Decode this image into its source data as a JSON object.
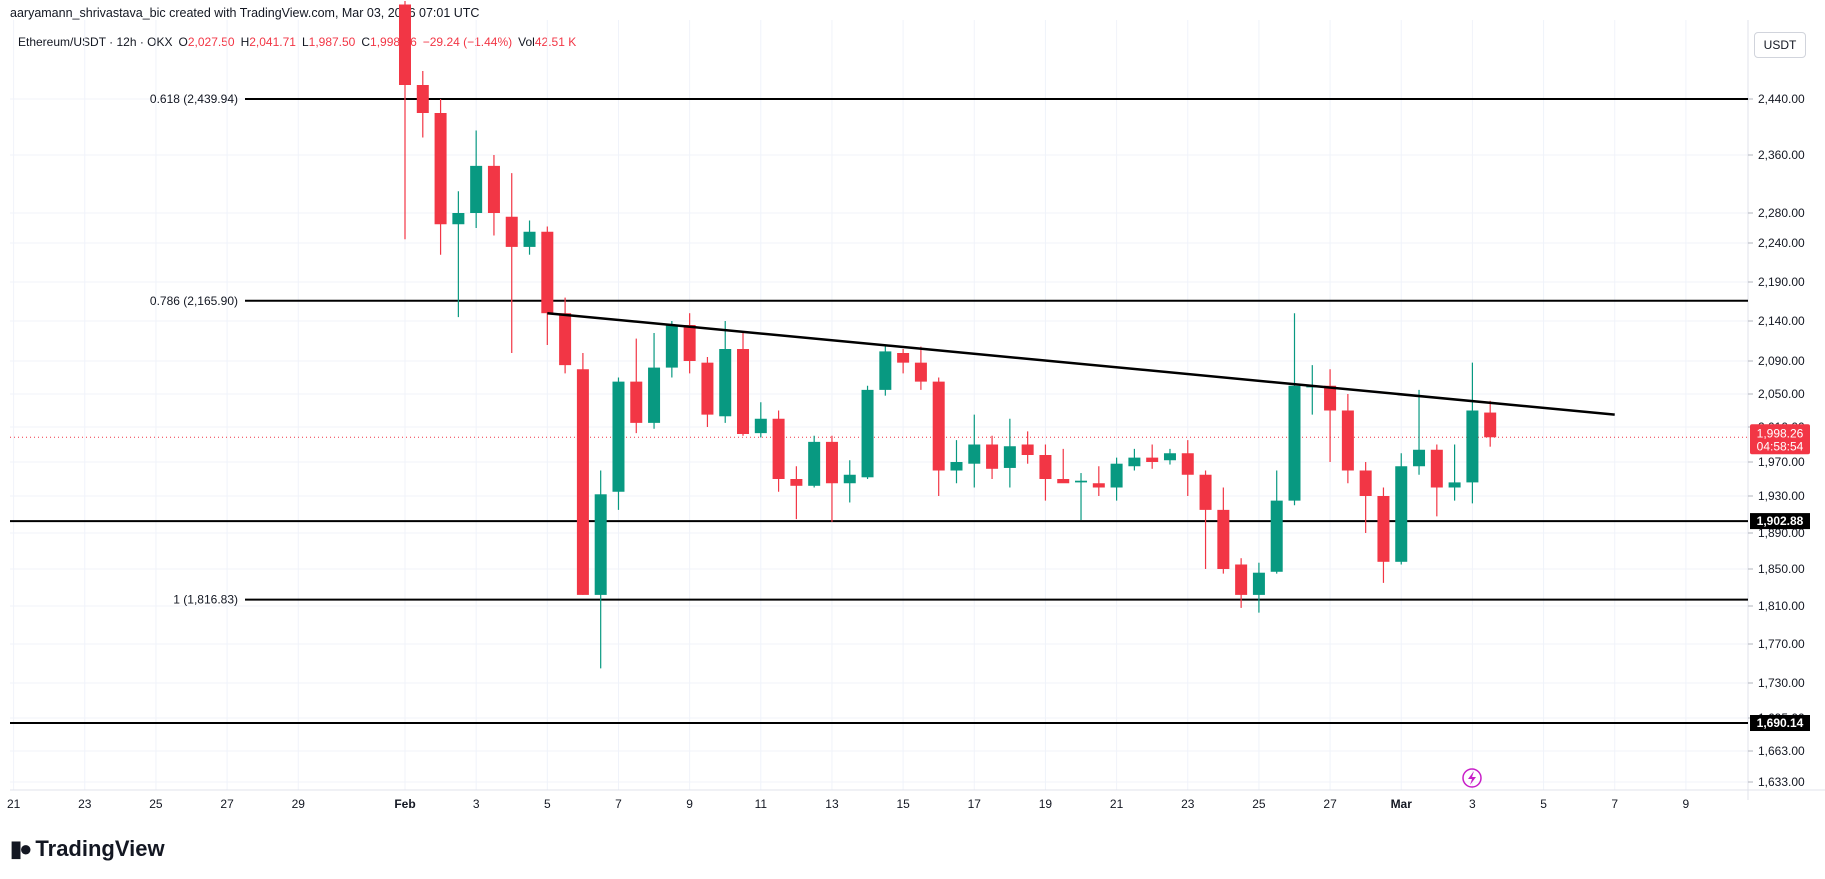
{
  "header": {
    "author_line": "aaryamann_shrivastava_bic created with TradingView.com, Mar 03, 2026 07:01 UTC"
  },
  "legend": {
    "symbol": "Ethereum/USDT · 12h · OKX",
    "open_label": "O",
    "open_value": "2,027.50",
    "high_label": "H",
    "high_value": "2,041.71",
    "low_label": "L",
    "low_value": "1,987.50",
    "close_label": "C",
    "close_value": "1,998.26",
    "change": "−29.24 (−1.44%)",
    "vol_label": "Vol",
    "vol_value": "42.51 K"
  },
  "currency_button": "USDT",
  "brand": {
    "name": "TradingView",
    "logo_icon": "tradingview-logo-icon"
  },
  "colors": {
    "up": "#089981",
    "down": "#f23645",
    "line": "#000000",
    "grid": "#f0f3fa"
  },
  "chart_data": {
    "type": "candlestick",
    "y_axis_ticks": [
      "2,440.00",
      "2,360.00",
      "2,280.00",
      "2,240.00",
      "2,190.00",
      "2,140.00",
      "2,090.00",
      "2,050.00",
      "2,010.00",
      "1,970.00",
      "1,930.00",
      "1,890.00",
      "1,850.00",
      "1,810.00",
      "1,770.00",
      "1,730.00",
      "1,695.00",
      "1,663.00",
      "1,633.00"
    ],
    "x_axis_ticks": [
      "21",
      "23",
      "25",
      "27",
      "29",
      "Feb",
      "3",
      "5",
      "7",
      "9",
      "11",
      "13",
      "15",
      "17",
      "19",
      "21",
      "23",
      "25",
      "27",
      "Mar",
      "3",
      "5",
      "7",
      "9"
    ],
    "fib_levels": [
      {
        "label": "0.618 (2,439.94)",
        "value": 2439.94
      },
      {
        "label": "0.786 (2,165.90)",
        "value": 2165.9
      },
      {
        "label": "1 (1,816.83)",
        "value": 1816.83
      }
    ],
    "horizontal_levels": [
      {
        "label": "1,902.88",
        "value": 1902.88
      },
      {
        "label": "1,690.14",
        "value": 1690.14
      }
    ],
    "current_price": {
      "label": "1,998.26",
      "countdown": "04:58:54",
      "value": 1998.26
    },
    "trendline": {
      "start": {
        "x": "Feb 5 00:00",
        "y": 2150
      },
      "end": {
        "x": "Mar 7 00:00",
        "y": 2025
      }
    },
    "candles": [
      {
        "t": "Feb 1 00:00",
        "o": 2575,
        "h": 2580,
        "l": 2245,
        "c": 2460
      },
      {
        "t": "Feb 1 12:00",
        "o": 2460,
        "h": 2480,
        "l": 2385,
        "c": 2420
      },
      {
        "t": "Feb 2 00:00",
        "o": 2420,
        "h": 2440,
        "l": 2225,
        "c": 2265
      },
      {
        "t": "Feb 2 12:00",
        "o": 2265,
        "h": 2310,
        "l": 2145,
        "c": 2280
      },
      {
        "t": "Feb 3 00:00",
        "o": 2280,
        "h": 2395,
        "l": 2260,
        "c": 2345
      },
      {
        "t": "Feb 3 12:00",
        "o": 2345,
        "h": 2360,
        "l": 2250,
        "c": 2280
      },
      {
        "t": "Feb 4 00:00",
        "o": 2275,
        "h": 2335,
        "l": 2100,
        "c": 2235
      },
      {
        "t": "Feb 4 12:00",
        "o": 2235,
        "h": 2270,
        "l": 2225,
        "c": 2255
      },
      {
        "t": "Feb 5 00:00",
        "o": 2255,
        "h": 2262,
        "l": 2110,
        "c": 2150
      },
      {
        "t": "Feb 5 12:00",
        "o": 2150,
        "h": 2170,
        "l": 2075,
        "c": 2085
      },
      {
        "t": "Feb 6 00:00",
        "o": 2080,
        "h": 2100,
        "l": 1822,
        "c": 1822
      },
      {
        "t": "Feb 6 12:00",
        "o": 1822,
        "h": 1960,
        "l": 1745,
        "c": 1932
      },
      {
        "t": "Feb 7 00:00",
        "o": 1935,
        "h": 2070,
        "l": 1915,
        "c": 2065
      },
      {
        "t": "Feb 7 12:00",
        "o": 2065,
        "h": 2118,
        "l": 2003,
        "c": 2015
      },
      {
        "t": "Feb 8 00:00",
        "o": 2015,
        "h": 2125,
        "l": 2008,
        "c": 2082
      },
      {
        "t": "Feb 8 12:00",
        "o": 2082,
        "h": 2140,
        "l": 2070,
        "c": 2135
      },
      {
        "t": "Feb 9 00:00",
        "o": 2135,
        "h": 2150,
        "l": 2075,
        "c": 2090
      },
      {
        "t": "Feb 9 12:00",
        "o": 2088,
        "h": 2095,
        "l": 2010,
        "c": 2025
      },
      {
        "t": "Feb 10 00:00",
        "o": 2023,
        "h": 2140,
        "l": 2015,
        "c": 2105
      },
      {
        "t": "Feb 10 12:00",
        "o": 2105,
        "h": 2125,
        "l": 2000,
        "c": 2002
      },
      {
        "t": "Feb 11 00:00",
        "o": 2003,
        "h": 2040,
        "l": 1998,
        "c": 2020
      },
      {
        "t": "Feb 11 12:00",
        "o": 2020,
        "h": 2030,
        "l": 1935,
        "c": 1950
      },
      {
        "t": "Feb 12 00:00",
        "o": 1950,
        "h": 1965,
        "l": 1905,
        "c": 1942
      },
      {
        "t": "Feb 12 12:00",
        "o": 1942,
        "h": 2000,
        "l": 1940,
        "c": 1993
      },
      {
        "t": "Feb 13 00:00",
        "o": 1993,
        "h": 2000,
        "l": 1902,
        "c": 1945
      },
      {
        "t": "Feb 13 12:00",
        "o": 1945,
        "h": 1972,
        "l": 1923,
        "c": 1955
      },
      {
        "t": "Feb 14 00:00",
        "o": 1952,
        "h": 2060,
        "l": 1950,
        "c": 2055
      },
      {
        "t": "Feb 14 12:00",
        "o": 2055,
        "h": 2110,
        "l": 2048,
        "c": 2102
      },
      {
        "t": "Feb 15 00:00",
        "o": 2100,
        "h": 2105,
        "l": 2075,
        "c": 2088
      },
      {
        "t": "Feb 15 12:00",
        "o": 2088,
        "h": 2108,
        "l": 2055,
        "c": 2065
      },
      {
        "t": "Feb 16 00:00",
        "o": 2065,
        "h": 2070,
        "l": 1930,
        "c": 1960
      },
      {
        "t": "Feb 16 12:00",
        "o": 1960,
        "h": 1995,
        "l": 1945,
        "c": 1970
      },
      {
        "t": "Feb 17 00:00",
        "o": 1968,
        "h": 2025,
        "l": 1940,
        "c": 1990
      },
      {
        "t": "Feb 17 12:00",
        "o": 1990,
        "h": 2000,
        "l": 1950,
        "c": 1962
      },
      {
        "t": "Feb 18 00:00",
        "o": 1963,
        "h": 2020,
        "l": 1940,
        "c": 1988
      },
      {
        "t": "Feb 18 12:00",
        "o": 1990,
        "h": 2005,
        "l": 1968,
        "c": 1978
      },
      {
        "t": "Feb 19 00:00",
        "o": 1978,
        "h": 1990,
        "l": 1925,
        "c": 1950
      },
      {
        "t": "Feb 19 12:00",
        "o": 1950,
        "h": 1985,
        "l": 1948,
        "c": 1945
      },
      {
        "t": "Feb 20 00:00",
        "o": 1946,
        "h": 1957,
        "l": 1904,
        "c": 1948
      },
      {
        "t": "Feb 20 12:00",
        "o": 1945,
        "h": 1965,
        "l": 1930,
        "c": 1940
      },
      {
        "t": "Feb 21 00:00",
        "o": 1940,
        "h": 1975,
        "l": 1925,
        "c": 1968
      },
      {
        "t": "Feb 21 12:00",
        "o": 1965,
        "h": 1985,
        "l": 1960,
        "c": 1975
      },
      {
        "t": "Feb 22 00:00",
        "o": 1975,
        "h": 1990,
        "l": 1962,
        "c": 1970
      },
      {
        "t": "Feb 22 12:00",
        "o": 1972,
        "h": 1985,
        "l": 1967,
        "c": 1980
      },
      {
        "t": "Feb 23 00:00",
        "o": 1980,
        "h": 1995,
        "l": 1930,
        "c": 1955
      },
      {
        "t": "Feb 23 12:00",
        "o": 1955,
        "h": 1960,
        "l": 1850,
        "c": 1915
      },
      {
        "t": "Feb 24 00:00",
        "o": 1915,
        "h": 1940,
        "l": 1845,
        "c": 1850
      },
      {
        "t": "Feb 24 12:00",
        "o": 1855,
        "h": 1862,
        "l": 1808,
        "c": 1822
      },
      {
        "t": "Feb 25 00:00",
        "o": 1822,
        "h": 1857,
        "l": 1803,
        "c": 1846
      },
      {
        "t": "Feb 25 12:00",
        "o": 1847,
        "h": 1960,
        "l": 1845,
        "c": 1925
      },
      {
        "t": "Feb 26 00:00",
        "o": 1925,
        "h": 2150,
        "l": 1920,
        "c": 2060
      },
      {
        "t": "Feb 26 12:00",
        "o": 2058,
        "h": 2085,
        "l": 2025,
        "c": 2060
      },
      {
        "t": "Feb 27 00:00",
        "o": 2060,
        "h": 2080,
        "l": 1970,
        "c": 2030
      },
      {
        "t": "Feb 27 12:00",
        "o": 2030,
        "h": 2050,
        "l": 1945,
        "c": 1960
      },
      {
        "t": "Feb 28 00:00",
        "o": 1960,
        "h": 1970,
        "l": 1890,
        "c": 1930
      },
      {
        "t": "Feb 28 12:00",
        "o": 1930,
        "h": 1940,
        "l": 1835,
        "c": 1858
      },
      {
        "t": "Mar 1 00:00",
        "o": 1858,
        "h": 1980,
        "l": 1855,
        "c": 1965
      },
      {
        "t": "Mar 1 12:00",
        "o": 1965,
        "h": 2055,
        "l": 1955,
        "c": 1984
      },
      {
        "t": "Mar 2 00:00",
        "o": 1984,
        "h": 1990,
        "l": 1908,
        "c": 1940
      },
      {
        "t": "Mar 2 12:00",
        "o": 1940,
        "h": 1990,
        "l": 1925,
        "c": 1946
      },
      {
        "t": "Mar 3 00:00",
        "o": 1946,
        "h": 2088,
        "l": 1922,
        "c": 2030
      },
      {
        "t": "Mar 3 12:00",
        "o": 2027.5,
        "h": 2041.71,
        "l": 1987.5,
        "c": 1998.26
      }
    ]
  }
}
